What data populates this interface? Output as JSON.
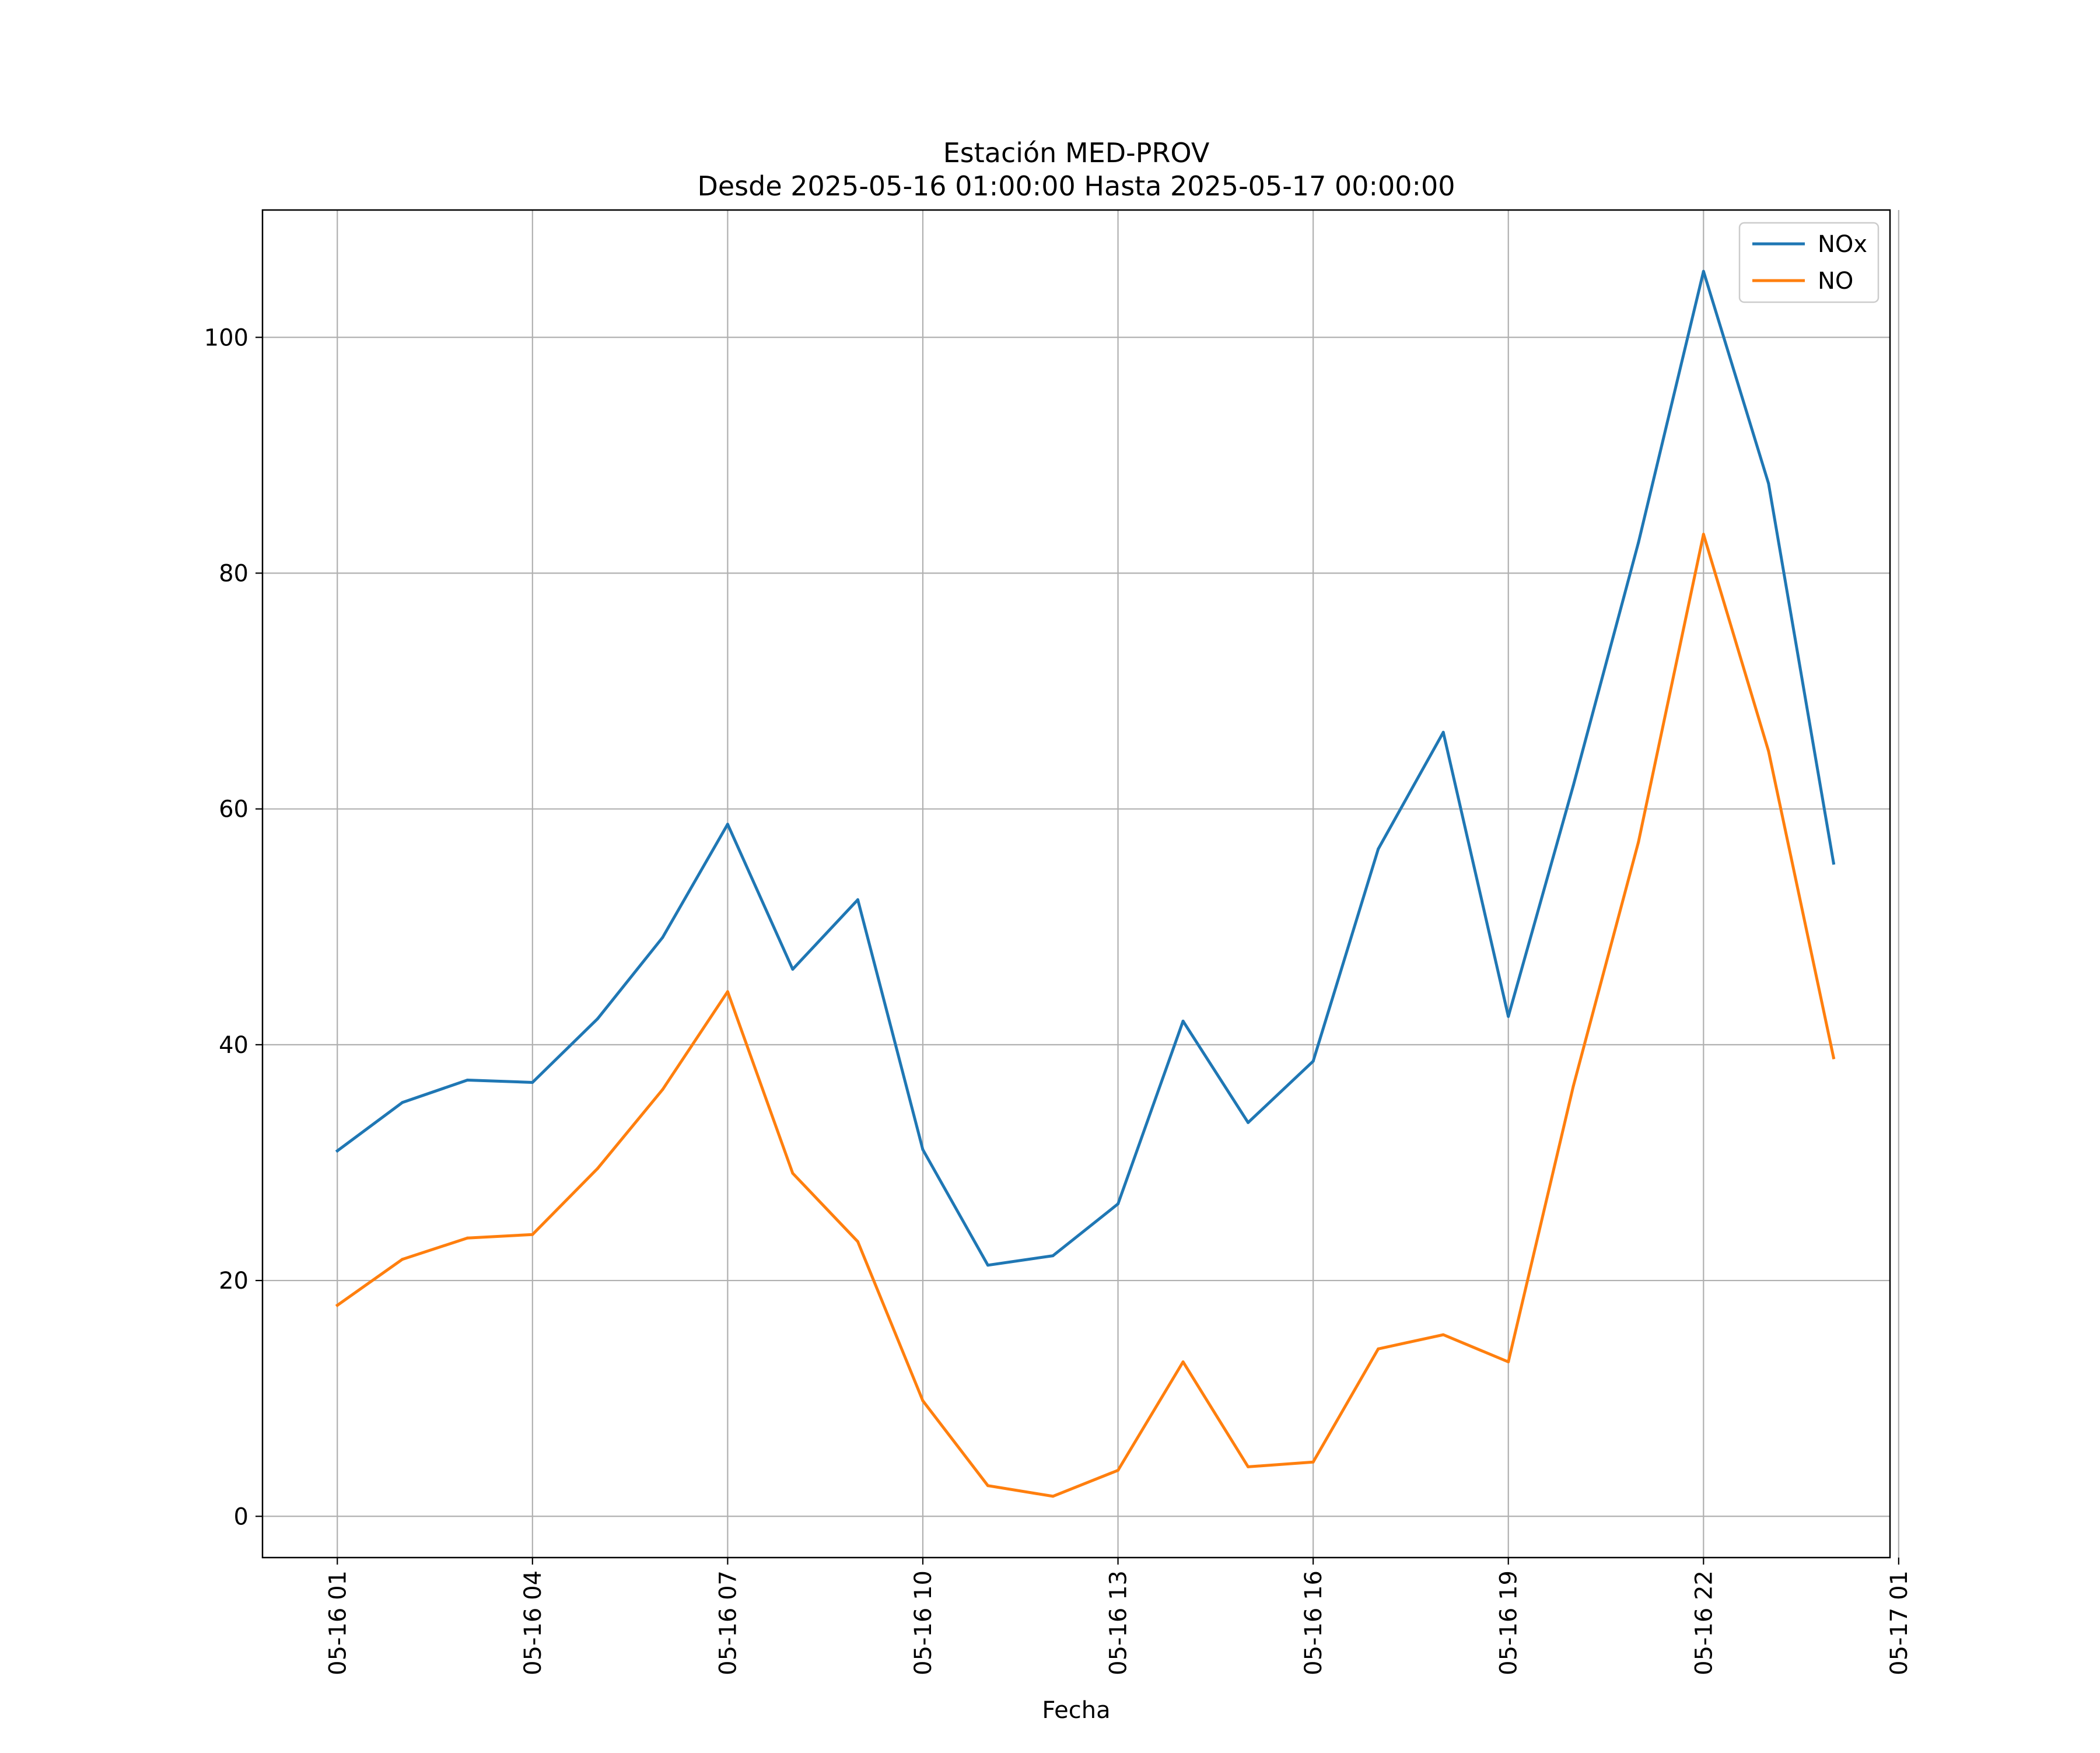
{
  "chart_data": {
    "type": "line",
    "title": "Estación MED-PROV",
    "subtitle": "Desde 2025-05-16 01:00:00 Hasta 2025-05-17 00:00:00",
    "xlabel": "Fecha",
    "ylabel": "",
    "x_unit": "hour",
    "x": [
      "2025-05-16 01:00",
      "2025-05-16 02:00",
      "2025-05-16 03:00",
      "2025-05-16 04:00",
      "2025-05-16 05:00",
      "2025-05-16 06:00",
      "2025-05-16 07:00",
      "2025-05-16 08:00",
      "2025-05-16 09:00",
      "2025-05-16 10:00",
      "2025-05-16 11:00",
      "2025-05-16 12:00",
      "2025-05-16 13:00",
      "2025-05-16 14:00",
      "2025-05-16 15:00",
      "2025-05-16 16:00",
      "2025-05-16 17:00",
      "2025-05-16 18:00",
      "2025-05-16 19:00",
      "2025-05-16 20:00",
      "2025-05-16 21:00",
      "2025-05-16 22:00",
      "2025-05-16 23:00",
      "2025-05-17 00:00"
    ],
    "xlim": [
      "2025-05-15 23:51",
      "2025-05-17 00:52"
    ],
    "ylim": [
      -3.5,
      110.8
    ],
    "xticks": [
      {
        "value": "2025-05-16 01:00",
        "label": "05-16 01"
      },
      {
        "value": "2025-05-16 04:00",
        "label": "05-16 04"
      },
      {
        "value": "2025-05-16 07:00",
        "label": "05-16 07"
      },
      {
        "value": "2025-05-16 10:00",
        "label": "05-16 10"
      },
      {
        "value": "2025-05-16 13:00",
        "label": "05-16 13"
      },
      {
        "value": "2025-05-16 16:00",
        "label": "05-16 16"
      },
      {
        "value": "2025-05-16 19:00",
        "label": "05-16 19"
      },
      {
        "value": "2025-05-16 22:00",
        "label": "05-16 22"
      },
      {
        "value": "2025-05-17 01:00",
        "label": "05-17 01"
      }
    ],
    "yticks": [
      {
        "value": 0,
        "label": "0"
      },
      {
        "value": 20,
        "label": "20"
      },
      {
        "value": 40,
        "label": "40"
      },
      {
        "value": 60,
        "label": "60"
      },
      {
        "value": 80,
        "label": "80"
      },
      {
        "value": 100,
        "label": "100"
      }
    ],
    "grid": true,
    "legend_position": "top-right",
    "series": [
      {
        "name": "NOx",
        "color": "#1f77b4",
        "values": [
          31.0,
          35.1,
          37.0,
          36.8,
          42.2,
          49.1,
          58.7,
          46.4,
          52.3,
          31.1,
          21.3,
          22.1,
          26.5,
          42.0,
          33.4,
          38.6,
          56.6,
          66.5,
          42.4,
          62.0,
          82.6,
          105.6,
          87.6,
          55.4
        ]
      },
      {
        "name": "NO",
        "color": "#ff7f0e",
        "values": [
          17.9,
          21.8,
          23.6,
          23.9,
          29.5,
          36.2,
          44.5,
          29.1,
          23.3,
          9.8,
          2.6,
          1.7,
          3.9,
          13.1,
          4.2,
          4.6,
          14.2,
          15.4,
          13.1,
          36.5,
          57.2,
          83.3,
          64.9,
          38.9
        ]
      }
    ]
  }
}
